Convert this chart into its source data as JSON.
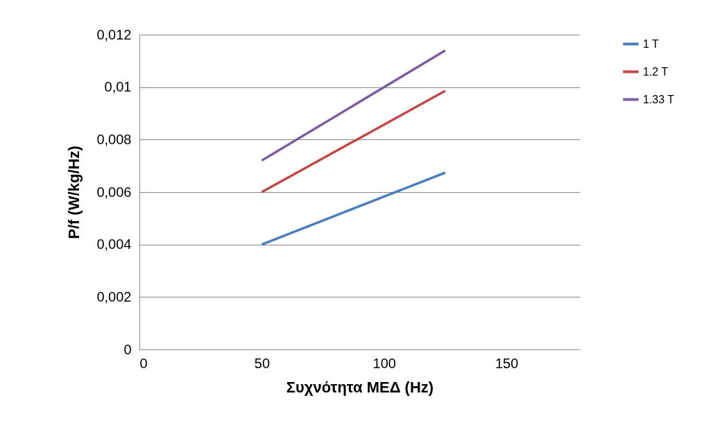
{
  "chart_data": {
    "type": "line",
    "xlabel": "Συχνότητα ΜΕΔ (Hz)",
    "ylabel": "P/f  (W/kg/Hz)",
    "x": [
      50,
      125
    ],
    "series": [
      {
        "name": "1 T",
        "color": "#4a7ebb",
        "values": [
          0.004,
          0.00674
        ]
      },
      {
        "name": "1.2 T",
        "color": "#be4b48",
        "values": [
          0.006,
          0.00986
        ]
      },
      {
        "name": "1.33 T",
        "color": "#7d5fa0",
        "values": [
          0.0072,
          0.0114
        ]
      }
    ],
    "xlim": [
      0,
      180
    ],
    "xticks": [
      0,
      50,
      100,
      150
    ],
    "ylim": [
      0,
      0.012
    ],
    "yticks": [
      0,
      {
        "value": 0.002,
        "label": "0,002"
      },
      {
        "value": 0.004,
        "label": "0,004"
      },
      {
        "value": 0.006,
        "label": "0,006"
      },
      {
        "value": 0.008,
        "label": "0,008"
      },
      {
        "value": 0.01,
        "label": "0,01"
      },
      {
        "value": 0.012,
        "label": "0,012"
      }
    ],
    "grid": "y",
    "legend": "right"
  }
}
